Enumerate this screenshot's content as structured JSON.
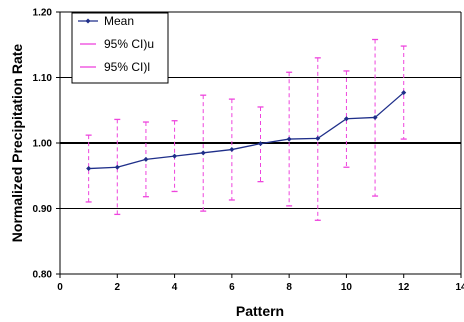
{
  "chart_data": {
    "type": "line",
    "xlabel": "Pattern",
    "ylabel": "Normalized Precipitation Rate",
    "xlim": [
      0,
      14
    ],
    "ylim": [
      0.8,
      1.2
    ],
    "x_ticks": [
      "0",
      "2",
      "4",
      "6",
      "8",
      "10",
      "12",
      "14"
    ],
    "y_ticks": [
      "0.80",
      "0.90",
      "1.00",
      "1.10",
      "1.20"
    ],
    "grid": "horizontal",
    "reference_line": 1.0,
    "legend_position": "top-left",
    "legend": [
      "Mean",
      "95% CI)u",
      "95% CI)l"
    ],
    "x": [
      1,
      2,
      3,
      4,
      5,
      6,
      7,
      8,
      9,
      10,
      11,
      12
    ],
    "series": [
      {
        "name": "Mean",
        "values": [
          0.961,
          0.963,
          0.975,
          0.98,
          0.985,
          0.99,
          0.999,
          1.006,
          1.007,
          1.037,
          1.039,
          1.077
        ]
      },
      {
        "name": "95% CI)u",
        "values": [
          1.012,
          1.036,
          1.032,
          1.034,
          1.073,
          1.067,
          1.055,
          1.108,
          1.13,
          1.11,
          1.158,
          1.148
        ]
      },
      {
        "name": "95% CI)l",
        "values": [
          0.91,
          0.891,
          0.918,
          0.926,
          0.896,
          0.913,
          0.941,
          0.904,
          0.882,
          0.963,
          0.919,
          1.006
        ]
      }
    ],
    "colors": {
      "mean": "#1f2f8a",
      "ci": "#ee44dd"
    }
  }
}
